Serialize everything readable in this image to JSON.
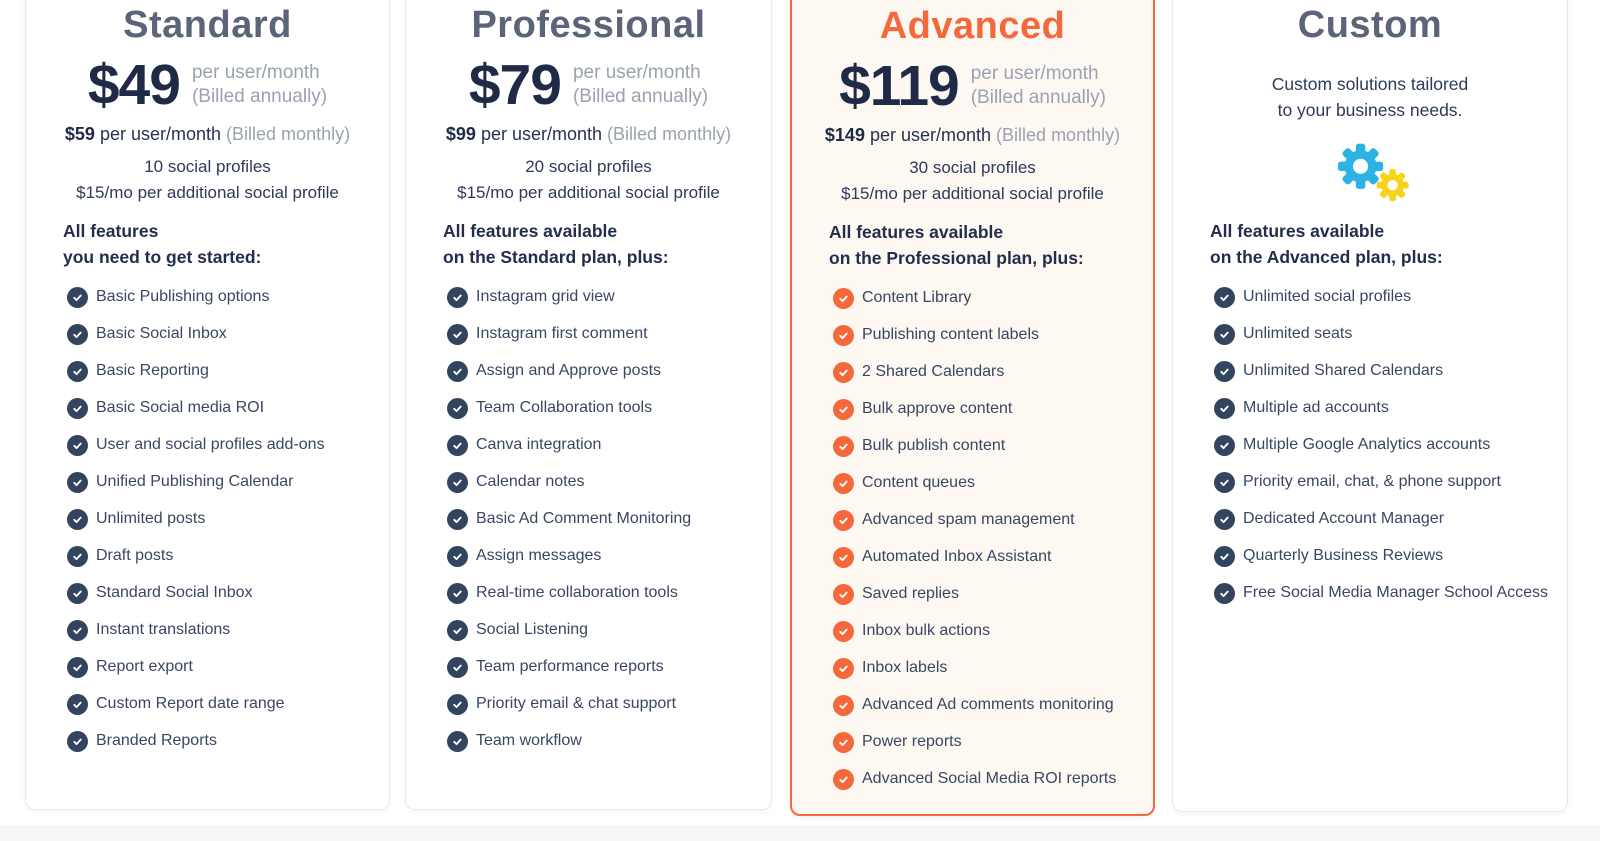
{
  "colors": {
    "accent_orange": "#F4683C",
    "navy_text": "#1F2A47",
    "title_gray": "#5B6478",
    "muted_gray": "#9AA2B1",
    "feature_text": "#3A4662",
    "check_navy": "#33455E",
    "gear_blue": "#2CB3E3",
    "gear_yellow": "#F7D319",
    "advanced_card_bg": "#FEF8F3",
    "card_border": "#E8E9EE",
    "footer_band": "#F6F7F9"
  },
  "plans": [
    {
      "id": "standard",
      "title": "Standard",
      "title_color": "#5B6478",
      "check_color": "#33455E",
      "annual_price": "$49",
      "annual_note_line1": "per user/month",
      "annual_note_line2": "(Billed annually)",
      "monthly_price": "$59",
      "monthly_text": "per user/month",
      "monthly_note": "(Billed monthly)",
      "profiles_line1": "10 social profiles",
      "profiles_line2": "$15/mo per additional social profile",
      "features_heading_line1": "All features",
      "features_heading_line2": "you need to get started:",
      "features": [
        "Basic Publishing options",
        "Basic Social Inbox",
        "Basic Reporting",
        "Basic Social media ROI",
        "User and social profiles add-ons",
        "Unified Publishing Calendar",
        "Unlimited posts",
        "Draft posts",
        "Standard Social Inbox",
        "Instant translations",
        "Report export",
        "Custom Report date range",
        "Branded Reports"
      ]
    },
    {
      "id": "professional",
      "title": "Professional",
      "title_color": "#5B6478",
      "check_color": "#33455E",
      "annual_price": "$79",
      "annual_note_line1": "per user/month",
      "annual_note_line2": "(Billed annually)",
      "monthly_price": "$99",
      "monthly_text": "per user/month",
      "monthly_note": "(Billed monthly)",
      "profiles_line1": "20 social profiles",
      "profiles_line2": "$15/mo per additional social profile",
      "features_heading_line1": "All features available",
      "features_heading_line2": "on the Standard plan, plus:",
      "features": [
        "Instagram grid view",
        "Instagram first comment",
        "Assign and Approve posts",
        "Team Collaboration tools",
        "Canva integration",
        "Calendar notes",
        "Basic Ad Comment Monitoring",
        "Assign messages",
        "Real-time collaboration tools",
        "Social Listening",
        "Team performance reports",
        "Priority email & chat support",
        "Team workflow"
      ]
    },
    {
      "id": "advanced",
      "title": "Advanced",
      "title_color": "#F4683C",
      "check_color": "#F4683C",
      "card_bg": "#FEF8F3",
      "card_border": "#F4683C",
      "annual_price": "$119",
      "annual_note_line1": "per user/month",
      "annual_note_line2": "(Billed annually)",
      "monthly_price": "$149",
      "monthly_text": "per user/month",
      "monthly_note": "(Billed monthly)",
      "profiles_line1": "30 social profiles",
      "profiles_line2": "$15/mo per additional social profile",
      "features_heading_line1": "All features available",
      "features_heading_line2": "on the Professional plan, plus:",
      "features": [
        "Content Library",
        "Publishing content labels",
        "2 Shared Calendars",
        "Bulk approve content",
        "Bulk publish content",
        "Content queues",
        "Advanced spam management",
        "Automated Inbox Assistant",
        "Saved replies",
        "Inbox bulk actions",
        "Inbox labels",
        "Advanced Ad comments monitoring",
        "Power reports",
        "Advanced Social Media ROI reports"
      ]
    },
    {
      "id": "custom",
      "title": "Custom",
      "title_color": "#5B6478",
      "check_color": "#33455E",
      "description_line1": "Custom solutions tailored",
      "description_line2": "to your business needs.",
      "icon": "gears-icon",
      "features_heading_line1": "All features available",
      "features_heading_line2": "on the Advanced plan, plus:",
      "features": [
        "Unlimited social profiles",
        "Unlimited seats",
        "Unlimited Shared Calendars",
        "Multiple ad accounts",
        "Multiple Google Analytics accounts",
        "Priority email, chat, & phone support",
        "Dedicated Account Manager",
        "Quarterly Business Reviews",
        "Free Social Media Manager School Access"
      ]
    }
  ]
}
